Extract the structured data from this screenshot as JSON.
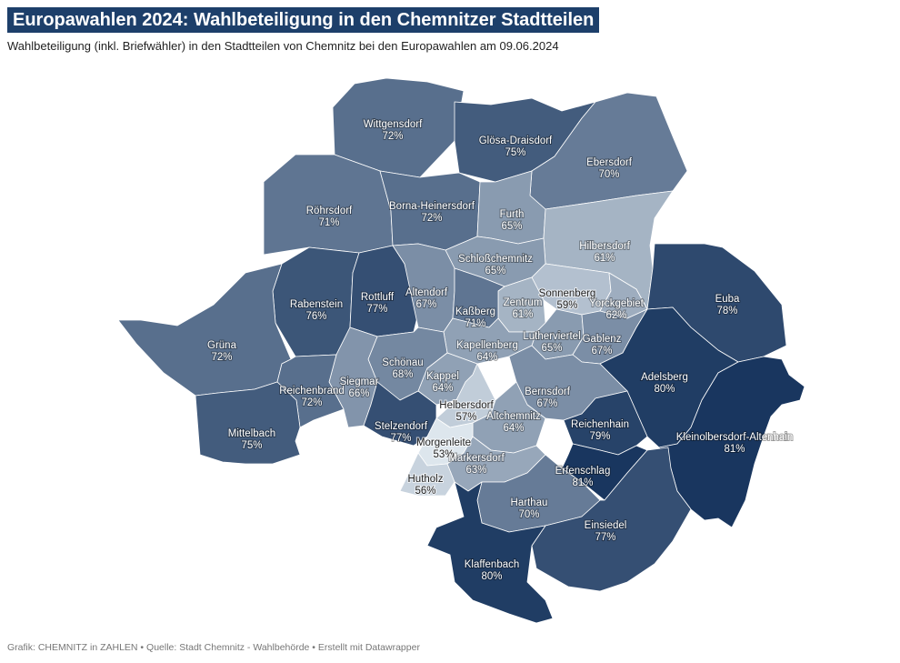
{
  "title": "Europawahlen 2024: Wahlbeteiligung in den Chemnitzer Stadtteilen",
  "subtitle": "Wahlbeteiligung (inkl. Briefwähler) in den Stadtteilen von Chemnitz bei den Europawahlen am 09.06.2024",
  "footer": "Grafik: CHEMNITZ in ZAHLEN • Quelle: Stadt Chemnitz - Wahlbehörde • Erstellt mit Datawrapper",
  "colors": {
    "title_bg": "#1d3f6a",
    "low": "#e4ecf2",
    "high": "#12305a",
    "border": "#ffffff"
  },
  "districts": [
    {
      "name": "Wittgensdorf",
      "value": "72%",
      "pct": 72
    },
    {
      "name": "Glösa-Draisdorf",
      "value": "75%",
      "pct": 75
    },
    {
      "name": "Ebersdorf",
      "value": "70%",
      "pct": 70
    },
    {
      "name": "Röhrsdorf",
      "value": "71%",
      "pct": 71
    },
    {
      "name": "Borna-Heinersdorf",
      "value": "72%",
      "pct": 72
    },
    {
      "name": "Furth",
      "value": "65%",
      "pct": 65
    },
    {
      "name": "Hilbersdorf",
      "value": "61%",
      "pct": 61
    },
    {
      "name": "Schloßchemnitz",
      "value": "65%",
      "pct": 65
    },
    {
      "name": "Rabenstein",
      "value": "76%",
      "pct": 76
    },
    {
      "name": "Rottluff",
      "value": "77%",
      "pct": 77
    },
    {
      "name": "Altendorf",
      "value": "67%",
      "pct": 67
    },
    {
      "name": "Sonnenberg",
      "value": "59%",
      "pct": 59
    },
    {
      "name": "Zentrum",
      "value": "61%",
      "pct": 61
    },
    {
      "name": "Yorckgebiet",
      "value": "62%",
      "pct": 62
    },
    {
      "name": "Kaßberg",
      "value": "71%",
      "pct": 71
    },
    {
      "name": "Euba",
      "value": "78%",
      "pct": 78
    },
    {
      "name": "Grüna",
      "value": "72%",
      "pct": 72
    },
    {
      "name": "Lutherviertel",
      "value": "65%",
      "pct": 65
    },
    {
      "name": "Gablenz",
      "value": "67%",
      "pct": 67
    },
    {
      "name": "Kapellenberg",
      "value": "64%",
      "pct": 64
    },
    {
      "name": "Schönau",
      "value": "68%",
      "pct": 68
    },
    {
      "name": "Siegmar",
      "value": "66%",
      "pct": 66
    },
    {
      "name": "Kappel",
      "value": "64%",
      "pct": 64
    },
    {
      "name": "Adelsberg",
      "value": "80%",
      "pct": 80
    },
    {
      "name": "Bernsdorf",
      "value": "67%",
      "pct": 67
    },
    {
      "name": "Reichenbrand",
      "value": "72%",
      "pct": 72
    },
    {
      "name": "Helbersdorf",
      "value": "57%",
      "pct": 57
    },
    {
      "name": "Altchemnitz",
      "value": "64%",
      "pct": 64
    },
    {
      "name": "Reichenhain",
      "value": "79%",
      "pct": 79
    },
    {
      "name": "Mittelbach",
      "value": "75%",
      "pct": 75
    },
    {
      "name": "Stelzendorf",
      "value": "77%",
      "pct": 77
    },
    {
      "name": "Morgenleite",
      "value": "53%",
      "pct": 53
    },
    {
      "name": "Kleinolbersdorf-Altenhain",
      "value": "81%",
      "pct": 81
    },
    {
      "name": "Markersdorf",
      "value": "63%",
      "pct": 63
    },
    {
      "name": "Erfenschlag",
      "value": "81%",
      "pct": 81
    },
    {
      "name": "Hutholz",
      "value": "56%",
      "pct": 56
    },
    {
      "name": "Harthau",
      "value": "70%",
      "pct": 70
    },
    {
      "name": "Einsiedel",
      "value": "77%",
      "pct": 77
    },
    {
      "name": "Klaffenbach",
      "value": "80%",
      "pct": 80
    }
  ]
}
